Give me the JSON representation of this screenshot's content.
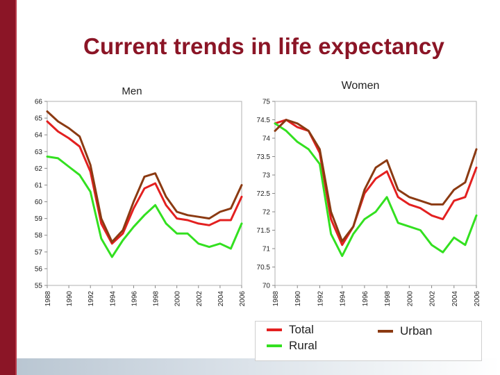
{
  "page": {
    "title": "Current trends in life expectancy"
  },
  "legend": {
    "items": [
      {
        "label": "Total",
        "color": "#e32020"
      },
      {
        "label": "Rural",
        "color": "#33e020"
      },
      {
        "label": "Urban",
        "color": "#8b3a12"
      }
    ]
  },
  "chart_data": [
    {
      "type": "line",
      "title": "Men",
      "xlabel": "",
      "ylabel": "",
      "ylim": [
        55,
        66
      ],
      "yticks": [
        55,
        56,
        57,
        58,
        59,
        60,
        61,
        62,
        63,
        64,
        65,
        66
      ],
      "ytick_labels": [
        "55",
        "56",
        "57",
        "58",
        "59",
        "60",
        "61",
        "62",
        "63",
        "64",
        "65",
        "66"
      ],
      "xlim": [
        1988,
        2006
      ],
      "xticks": [
        1988,
        1990,
        1992,
        1994,
        1996,
        1998,
        2000,
        2002,
        2004,
        2006
      ],
      "xtick_labels": [
        "1988",
        "1990",
        "1992",
        "1994",
        "1996",
        "1998",
        "2000",
        "2002",
        "2004",
        "2006"
      ],
      "x": [
        1988,
        1989,
        1990,
        1991,
        1992,
        1993,
        1994,
        1995,
        1996,
        1997,
        1998,
        1999,
        2000,
        2001,
        2002,
        2003,
        2004,
        2005,
        2006
      ],
      "series": [
        {
          "name": "Total",
          "color": "#e32020",
          "values": [
            64.8,
            64.2,
            63.8,
            63.3,
            61.8,
            58.7,
            57.5,
            58.1,
            59.6,
            60.8,
            61.1,
            59.8,
            59.0,
            58.9,
            58.7,
            58.6,
            58.9,
            58.9,
            60.3
          ]
        },
        {
          "name": "Rural",
          "color": "#33e020",
          "values": [
            62.7,
            62.6,
            62.1,
            61.6,
            60.6,
            57.8,
            56.7,
            57.7,
            58.5,
            59.2,
            59.8,
            58.7,
            58.1,
            58.1,
            57.5,
            57.3,
            57.5,
            57.2,
            58.7
          ]
        },
        {
          "name": "Urban",
          "color": "#8b3a12",
          "values": [
            65.4,
            64.8,
            64.4,
            63.9,
            62.2,
            59.0,
            57.6,
            58.3,
            60.0,
            61.5,
            61.7,
            60.3,
            59.4,
            59.2,
            59.1,
            59.0,
            59.4,
            59.6,
            61.0
          ]
        }
      ]
    },
    {
      "type": "line",
      "title": "Women",
      "xlabel": "",
      "ylabel": "",
      "ylim": [
        70,
        75
      ],
      "yticks": [
        70,
        70.5,
        71,
        71.5,
        72,
        72.5,
        73,
        73.5,
        74,
        74.5,
        75
      ],
      "ytick_labels": [
        "70",
        "70.5",
        "71",
        "71.5",
        "72",
        "72.5",
        "73",
        "73.5",
        "74",
        "74.5",
        "75"
      ],
      "xlim": [
        1988,
        2006
      ],
      "xticks": [
        1988,
        1990,
        1992,
        1994,
        1996,
        1998,
        2000,
        2002,
        2004,
        2006
      ],
      "xtick_labels": [
        "1988",
        "1990",
        "1992",
        "1994",
        "1996",
        "1998",
        "2000",
        "2002",
        "2004",
        "2006"
      ],
      "x": [
        1988,
        1989,
        1990,
        1991,
        1992,
        1993,
        1994,
        1995,
        1996,
        1997,
        1998,
        1999,
        2000,
        2001,
        2002,
        2003,
        2004,
        2005,
        2006
      ],
      "series": [
        {
          "name": "Total",
          "color": "#e32020",
          "values": [
            74.4,
            74.5,
            74.3,
            74.2,
            73.6,
            71.8,
            71.1,
            71.6,
            72.5,
            72.9,
            73.1,
            72.4,
            72.2,
            72.1,
            71.9,
            71.8,
            72.3,
            72.4,
            73.2
          ]
        },
        {
          "name": "Rural",
          "color": "#33e020",
          "values": [
            74.4,
            74.2,
            73.9,
            73.7,
            73.3,
            71.4,
            70.8,
            71.4,
            71.8,
            72.0,
            72.4,
            71.7,
            71.6,
            71.5,
            71.1,
            70.9,
            71.3,
            71.1,
            71.9
          ]
        },
        {
          "name": "Urban",
          "color": "#8b3a12",
          "values": [
            74.2,
            74.5,
            74.4,
            74.2,
            73.7,
            72.0,
            71.2,
            71.6,
            72.6,
            73.2,
            73.4,
            72.6,
            72.4,
            72.3,
            72.2,
            72.2,
            72.6,
            72.8,
            73.7
          ]
        }
      ]
    }
  ]
}
